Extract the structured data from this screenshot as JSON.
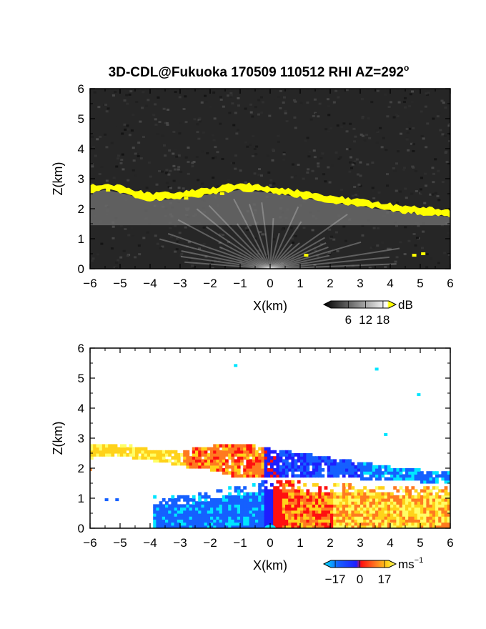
{
  "title": "3D-CDL@Fukuoka 170509 110512 RHI AZ=292",
  "title_superscript": "o",
  "chart_data": [
    {
      "type": "heatmap",
      "panel": "top",
      "quantity": "backscatter intensity",
      "xlabel": "X(km)",
      "ylabel": "Z(km)",
      "xlim": [
        -6,
        6
      ],
      "ylim": [
        0,
        6
      ],
      "x_ticks": [
        -6,
        -5,
        -4,
        -3,
        -2,
        -1,
        0,
        1,
        2,
        3,
        4,
        5,
        6
      ],
      "y_ticks": [
        0,
        1,
        2,
        3,
        4,
        5,
        6
      ],
      "colorbar": {
        "unit": "dB",
        "ticks": [
          6,
          12,
          18
        ],
        "range": [
          0,
          20
        ],
        "colormap": "grayscale to white, yellow above 18",
        "low_color": "#000000",
        "high_color": "#ffff00"
      },
      "features": {
        "yellow_layer_top_km": [
          [
            -6,
            2.75
          ],
          [
            -5.5,
            2.85
          ],
          [
            -5,
            2.75
          ],
          [
            -4,
            2.5
          ],
          [
            -3,
            2.55
          ],
          [
            -2,
            2.7
          ],
          [
            -1,
            2.85
          ],
          [
            0,
            2.75
          ],
          [
            1,
            2.6
          ],
          [
            2,
            2.45
          ],
          [
            3,
            2.3
          ],
          [
            4,
            2.15
          ],
          [
            5,
            2.05
          ],
          [
            6,
            1.95
          ]
        ],
        "yellow_layer_thickness_km": 0.22
      }
    },
    {
      "type": "heatmap",
      "panel": "bottom",
      "quantity": "radial velocity",
      "xlabel": "X(km)",
      "ylabel": "Z(km)",
      "xlim": [
        -6,
        6
      ],
      "ylim": [
        0,
        6
      ],
      "x_ticks": [
        -6,
        -5,
        -4,
        -3,
        -2,
        -1,
        0,
        1,
        2,
        3,
        4,
        5,
        6
      ],
      "y_ticks": [
        0,
        1,
        2,
        3,
        4,
        5,
        6
      ],
      "colorbar": {
        "unit": "ms",
        "unit_superscript": "−1",
        "ticks": [
          -17,
          0,
          17
        ],
        "tick_labels": [
          "−17",
          "0",
          "17"
        ],
        "range": [
          -20,
          20
        ],
        "colors": [
          "#00e5ff",
          "#1560ff",
          "#1e1eff",
          "#ff1010",
          "#ff7a20",
          "#ffd21a",
          "#ffff66"
        ]
      },
      "features": {
        "upper_layer_top_km": [
          [
            -6,
            2.75
          ],
          [
            -5,
            2.8
          ],
          [
            -4,
            2.55
          ],
          [
            -3,
            2.55
          ],
          [
            -2,
            2.7
          ],
          [
            -1,
            2.8
          ],
          [
            0,
            2.6
          ],
          [
            1,
            2.45
          ],
          [
            2,
            2.3
          ],
          [
            3,
            2.15
          ],
          [
            4,
            2.0
          ],
          [
            5,
            1.9
          ],
          [
            6,
            1.85
          ]
        ],
        "upper_layer_bottom_km": [
          [
            -6,
            2.3
          ],
          [
            -5,
            2.35
          ],
          [
            -4,
            2.2
          ],
          [
            -3,
            2.0
          ],
          [
            -2,
            1.9
          ],
          [
            -1,
            1.6
          ],
          [
            0,
            1.65
          ],
          [
            1,
            1.7
          ],
          [
            2,
            1.65
          ],
          [
            3,
            1.6
          ],
          [
            4,
            1.55
          ],
          [
            5,
            1.5
          ],
          [
            6,
            1.45
          ]
        ],
        "lower_layer_top_km": [
          [
            -4,
            1.05
          ],
          [
            -3,
            1.05
          ],
          [
            -2,
            1.2
          ],
          [
            -1,
            1.4
          ],
          [
            0,
            1.55
          ],
          [
            1,
            1.5
          ],
          [
            2,
            1.45
          ],
          [
            3,
            1.4
          ],
          [
            4,
            1.4
          ],
          [
            5,
            1.35
          ],
          [
            6,
            1.3
          ]
        ],
        "isolated_points": [
          [
            -1.15,
            5.42
          ],
          [
            3.55,
            5.3
          ],
          [
            3.85,
            3.12
          ],
          [
            4.95,
            4.45
          ],
          [
            -6,
            1.95
          ],
          [
            -5.45,
            0.95
          ],
          [
            -5.1,
            0.95
          ]
        ]
      }
    }
  ]
}
